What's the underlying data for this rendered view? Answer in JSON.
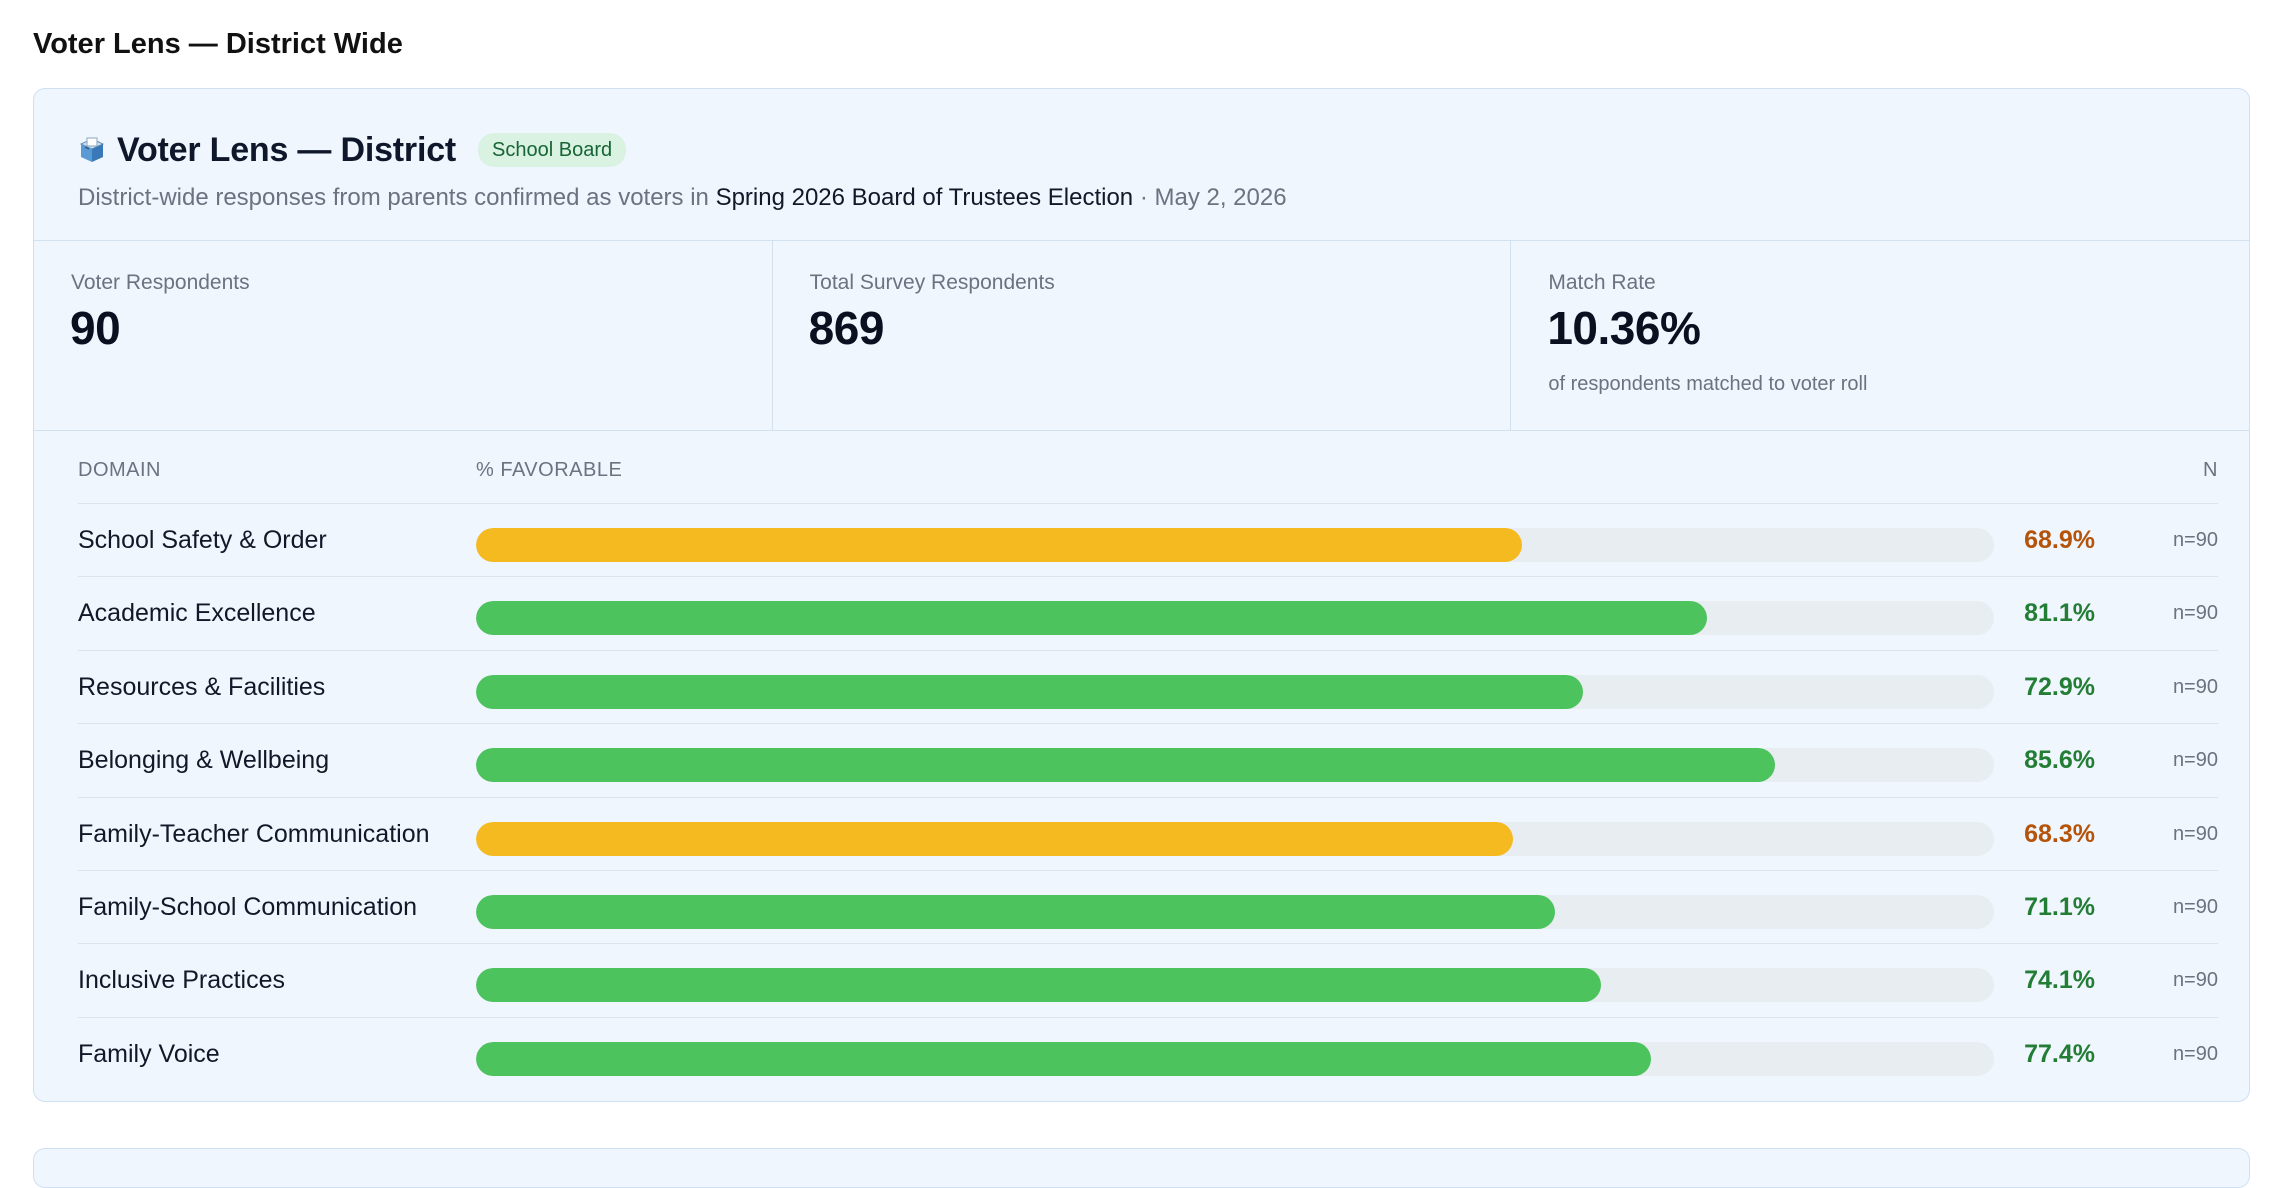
{
  "page": {
    "title": "Voter Lens — District Wide"
  },
  "card": {
    "icon": "ballot-box-icon",
    "title": "Voter Lens — District",
    "badge": "School Board",
    "subtitle_prefix": "District-wide responses from parents confirmed as voters in",
    "election_name": "Spring 2026 Board of Trustees Election",
    "subtitle_suffix": "· May 2, 2026"
  },
  "stats": [
    {
      "label": "Voter Respondents",
      "value": "90",
      "note": ""
    },
    {
      "label": "Total Survey Respondents",
      "value": "869",
      "note": ""
    },
    {
      "label": "Match Rate",
      "value": "10.36%",
      "note": "of respondents matched to voter roll"
    }
  ],
  "table": {
    "headers": {
      "domain": "DOMAIN",
      "favorable": "% FAVORABLE",
      "n": "N"
    },
    "rows": [
      {
        "domain": "School Safety & Order",
        "favorable": 68.9,
        "pct_label": "68.9%",
        "n_label": "n=90",
        "status": "warning"
      },
      {
        "domain": "Academic Excellence",
        "favorable": 81.1,
        "pct_label": "81.1%",
        "n_label": "n=90",
        "status": "good"
      },
      {
        "domain": "Resources & Facilities",
        "favorable": 72.9,
        "pct_label": "72.9%",
        "n_label": "n=90",
        "status": "good"
      },
      {
        "domain": "Belonging & Wellbeing",
        "favorable": 85.6,
        "pct_label": "85.6%",
        "n_label": "n=90",
        "status": "good"
      },
      {
        "domain": "Family-Teacher Communication",
        "favorable": 68.3,
        "pct_label": "68.3%",
        "n_label": "n=90",
        "status": "warning"
      },
      {
        "domain": "Family-School Communication",
        "favorable": 71.1,
        "pct_label": "71.1%",
        "n_label": "n=90",
        "status": "good"
      },
      {
        "domain": "Inclusive Practices",
        "favorable": 74.1,
        "pct_label": "74.1%",
        "n_label": "n=90",
        "status": "good"
      },
      {
        "domain": "Family Voice",
        "favorable": 77.4,
        "pct_label": "77.4%",
        "n_label": "n=90",
        "status": "good"
      }
    ]
  },
  "colors": {
    "good_bar": "#4cc35d",
    "good_text": "#237d34",
    "warning_bar": "#f5ba1f",
    "warning_text": "#b45309"
  }
}
